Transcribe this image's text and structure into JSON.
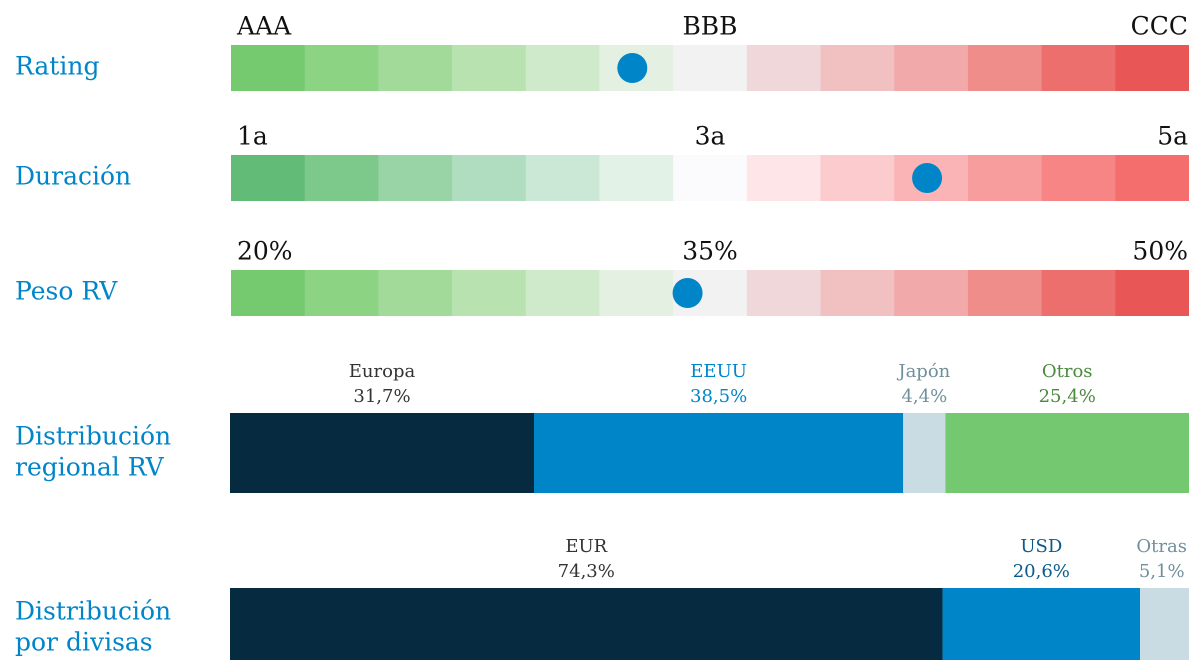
{
  "gauges": [
    {
      "label": "Rating",
      "scale_labels": [
        "AAA",
        "BBB",
        "CCC"
      ],
      "position": 5,
      "colors": [
        "#75c96f",
        "#8cd384",
        "#a2da9a",
        "#b8e2b0",
        "#cfeacb",
        "#e4f1e2",
        "#f2f2f2",
        "#f0d8da",
        "#f1c0c1",
        "#f1a9aa",
        "#ee8d8a",
        "#ec6f6e",
        "#e95656"
      ]
    },
    {
      "label": "Duración",
      "scale_labels": [
        "1a",
        "3a",
        "5a"
      ],
      "position": 9,
      "colors": [
        "#62bb77",
        "#7dc98b",
        "#98d4a5",
        "#b0ddbf",
        "#cae8d5",
        "#e3f2e7",
        "#fbfbfd",
        "#fde5e8",
        "#fbcbce",
        "#fab4b6",
        "#f89d9e",
        "#f88585",
        "#f46e6e"
      ]
    },
    {
      "label": "Peso RV",
      "scale_labels": [
        "20%",
        "35%",
        "50%"
      ],
      "position": 5.75,
      "colors": [
        "#75c96f",
        "#8cd384",
        "#a2da9a",
        "#b8e2b0",
        "#cfeacb",
        "#e4f1e2",
        "#f2f2f2",
        "#f0d8da",
        "#f1c0c1",
        "#f1a9aa",
        "#ee8d8a",
        "#ec6f6e",
        "#e95656"
      ]
    }
  ],
  "marker_color": "#0085c9",
  "distributions": [
    {
      "label": [
        "Distribución",
        "regional RV"
      ],
      "segments": [
        {
          "name": "Europa",
          "value": 31.7,
          "value_label": "31,7%",
          "color": "#062a3f",
          "label_color": "#333333"
        },
        {
          "name": "EEUU",
          "value": 38.5,
          "value_label": "38,5%",
          "color": "#0085c9",
          "label_color": "#0085c9"
        },
        {
          "name": "Japón",
          "value": 4.4,
          "value_label": "4,4%",
          "color": "#c9dce4",
          "label_color": "#6f8f9c"
        },
        {
          "name": "Otros",
          "value": 25.4,
          "value_label": "25,4%",
          "color": "#74c86f",
          "label_color": "#4a8a3c"
        }
      ]
    },
    {
      "label": [
        "Distribución",
        "por divisas"
      ],
      "segments": [
        {
          "name": "EUR",
          "value": 74.3,
          "value_label": "74,3%",
          "color": "#062a3f",
          "label_color": "#333333"
        },
        {
          "name": "USD",
          "value": 20.6,
          "value_label": "20,6%",
          "color": "#0085c9",
          "label_color": "#0a5a8a"
        },
        {
          "name": "Otras",
          "value": 5.1,
          "value_label": "5,1%",
          "color": "#c9dce4",
          "label_color": "#6f8f9c"
        }
      ]
    }
  ]
}
